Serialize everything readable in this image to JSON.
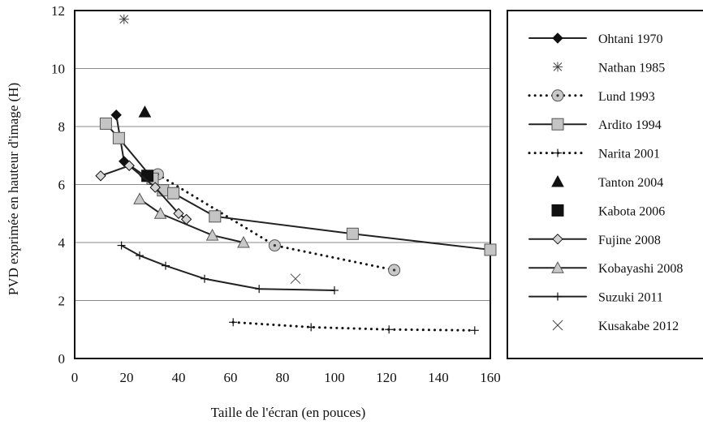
{
  "chart_data": {
    "type": "line",
    "title": "",
    "xlabel": "Taille de l'écran (en pouces)",
    "ylabel": "PVD exprimée en hauteur d'image (H)",
    "xlim": [
      0,
      160
    ],
    "ylim": [
      0,
      12
    ],
    "xticks": [
      "0",
      "20",
      "40",
      "60",
      "80",
      "100",
      "120",
      "140",
      "160"
    ],
    "yticks": [
      "0",
      "2",
      "4",
      "6",
      "8",
      "10",
      "12"
    ],
    "grid": "horizontal",
    "legend_position": "right",
    "series": [
      {
        "name": "Ohtani 1970",
        "marker": "diamond",
        "line": "solid",
        "marker_fill": "#111111",
        "points": [
          [
            16,
            8.4
          ],
          [
            19,
            6.8
          ],
          [
            27,
            6.3
          ]
        ]
      },
      {
        "name": "Nathan 1985",
        "marker": "asterisk",
        "line": "none",
        "marker_fill": "none",
        "points": [
          [
            19,
            11.7
          ]
        ]
      },
      {
        "name": "Lund 1993",
        "marker": "circle-dot",
        "line": "dotted",
        "marker_fill": "#c8c8c8",
        "points": [
          [
            32,
            6.35
          ],
          [
            77,
            3.9
          ],
          [
            123,
            3.05
          ]
        ]
      },
      {
        "name": "Ardito 1994",
        "marker": "square",
        "line": "solid",
        "marker_fill": "#c4c4c4",
        "points": [
          [
            12,
            8.1
          ],
          [
            17,
            7.6
          ],
          [
            30,
            6.2
          ],
          [
            34,
            5.8
          ],
          [
            38,
            5.7
          ],
          [
            54,
            4.9
          ],
          [
            107,
            4.3
          ],
          [
            160,
            3.75
          ]
        ]
      },
      {
        "name": "Narita 2001",
        "marker": "plus",
        "line": "dotted",
        "marker_fill": "none",
        "points": [
          [
            61,
            1.25
          ],
          [
            91,
            1.08
          ],
          [
            121,
            1.0
          ],
          [
            154,
            0.97
          ]
        ]
      },
      {
        "name": "Tanton 2004",
        "marker": "triangle",
        "line": "none",
        "marker_fill": "#111111",
        "points": [
          [
            27,
            8.5
          ]
        ]
      },
      {
        "name": "Kabota 2006",
        "marker": "square",
        "line": "none",
        "marker_fill": "#111111",
        "points": [
          [
            28,
            6.3
          ]
        ]
      },
      {
        "name": "Fujine 2008",
        "marker": "diamond",
        "line": "solid",
        "marker_fill": "#d4d4d4",
        "points": [
          [
            10,
            6.3
          ],
          [
            21,
            6.65
          ],
          [
            31,
            5.9
          ],
          [
            40,
            5.0
          ],
          [
            43,
            4.8
          ]
        ]
      },
      {
        "name": "Kobayashi 2008",
        "marker": "triangle",
        "line": "solid",
        "marker_fill": "#c8c8c8",
        "points": [
          [
            25,
            5.5
          ],
          [
            33,
            5.0
          ],
          [
            53,
            4.25
          ],
          [
            65,
            4.0
          ]
        ]
      },
      {
        "name": "Suzuki 2011",
        "marker": "plus",
        "line": "solid",
        "marker_fill": "none",
        "points": [
          [
            18,
            3.9
          ],
          [
            25,
            3.55
          ],
          [
            35,
            3.2
          ],
          [
            50,
            2.75
          ],
          [
            71,
            2.4
          ],
          [
            100,
            2.35
          ]
        ]
      },
      {
        "name": "Kusakabe 2012",
        "marker": "cross",
        "line": "none",
        "marker_fill": "none",
        "points": [
          [
            85,
            2.75
          ]
        ]
      }
    ]
  }
}
